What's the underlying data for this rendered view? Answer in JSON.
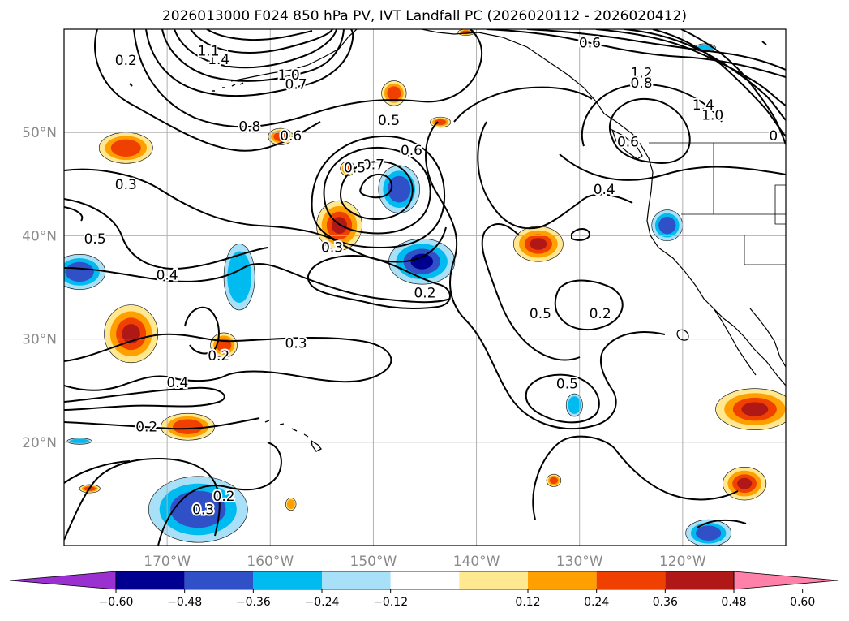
{
  "title": "2026013000 F024 850 hPa PV, IVT Landfall PC (2026020112 - 2026020412)",
  "map": {
    "projection": "PlateCarree",
    "lon_range": [
      -180,
      -110
    ],
    "lat_range": [
      10,
      60
    ],
    "gridlines": true,
    "lon_ticks": [
      {
        "value": -170,
        "label": "170°W"
      },
      {
        "value": -160,
        "label": "160°W"
      },
      {
        "value": -150,
        "label": "150°W"
      },
      {
        "value": -140,
        "label": "140°W"
      },
      {
        "value": -130,
        "label": "130°W"
      },
      {
        "value": -120,
        "label": "120°W"
      }
    ],
    "lat_ticks": [
      {
        "value": 20,
        "label": "20°N"
      },
      {
        "value": 30,
        "label": "30°N"
      },
      {
        "value": 40,
        "label": "40°N"
      },
      {
        "value": 50,
        "label": "50°N"
      }
    ],
    "contour_labels": [
      {
        "lon": -174,
        "lat": 57,
        "text": "0.2"
      },
      {
        "lon": -174,
        "lat": 45,
        "text": "0.3"
      },
      {
        "lon": -177,
        "lat": 39.7,
        "text": "0.5"
      },
      {
        "lon": -170,
        "lat": 36.2,
        "text": "0.4"
      },
      {
        "lon": -162,
        "lat": 50.6,
        "text": "0.8"
      },
      {
        "lon": -158,
        "lat": 49.7,
        "text": "0.6"
      },
      {
        "lon": -148.5,
        "lat": 51.2,
        "text": "0.5"
      },
      {
        "lon": -150,
        "lat": 46.9,
        "text": "0.7"
      },
      {
        "lon": -151.8,
        "lat": 46.6,
        "text": "0.5"
      },
      {
        "lon": -146.3,
        "lat": 48.3,
        "text": "0.6"
      },
      {
        "lon": -154,
        "lat": 38.9,
        "text": "0.3"
      },
      {
        "lon": -145,
        "lat": 34.5,
        "text": "0.2"
      },
      {
        "lon": -157.5,
        "lat": 29.6,
        "text": "0.3"
      },
      {
        "lon": -165,
        "lat": 28.4,
        "text": "0.2"
      },
      {
        "lon": -169,
        "lat": 25.8,
        "text": "0.4"
      },
      {
        "lon": -172,
        "lat": 21.5,
        "text": "0.2"
      },
      {
        "lon": -158.2,
        "lat": 55.6,
        "text": "1.0"
      },
      {
        "lon": -157.5,
        "lat": 54.7,
        "text": "0.7"
      },
      {
        "lon": -165,
        "lat": 57.1,
        "text": "1.4"
      },
      {
        "lon": -166,
        "lat": 57.9,
        "text": "1.1"
      },
      {
        "lon": -133.8,
        "lat": 32.5,
        "text": "0.5"
      },
      {
        "lon": -128,
        "lat": 32.5,
        "text": "0.2"
      },
      {
        "lon": -131.2,
        "lat": 25.7,
        "text": "0.5"
      },
      {
        "lon": -166.5,
        "lat": 13.5,
        "text": "0.3"
      },
      {
        "lon": -164.5,
        "lat": 14.8,
        "text": "0.2"
      },
      {
        "lon": -129,
        "lat": 58.7,
        "text": "0.6"
      },
      {
        "lon": -124,
        "lat": 55.8,
        "text": "1.2"
      },
      {
        "lon": -124,
        "lat": 54.8,
        "text": "0.8"
      },
      {
        "lon": -125.3,
        "lat": 49.1,
        "text": "0.6"
      },
      {
        "lon": -127.6,
        "lat": 44.5,
        "text": "0.4"
      },
      {
        "lon": -118,
        "lat": 52.7,
        "text": "1.4"
      },
      {
        "lon": -117.1,
        "lat": 51.7,
        "text": "1.0"
      },
      {
        "lon": -111.2,
        "lat": 49.7,
        "text": "0"
      }
    ]
  },
  "colorbar": {
    "ticks": [
      "−0.60",
      "−0.48",
      "−0.36",
      "−0.24",
      "−0.12",
      "0.12",
      "0.24",
      "0.36",
      "0.48",
      "0.60"
    ],
    "colors": [
      "#9b30d0",
      "#000090",
      "#3050c8",
      "#00bbf0",
      "#a8e0f8",
      "#ffffff",
      "#ffe890",
      "#ffa000",
      "#f04000",
      "#b01818",
      "#ff80a8"
    ]
  },
  "colors": {
    "red": "#f04000",
    "dark_red": "#b01818",
    "orange": "#ffa000",
    "yellow": "#ffe890",
    "navy": "#000090",
    "blue": "#3050c8",
    "cyan": "#00bbf0",
    "light_cyan": "#a8e0f8"
  },
  "shaded_regions": [
    {
      "sign": "pos",
      "level": 2,
      "lon": -174,
      "lat": 48.5,
      "rx": 2.6,
      "ry": 1.5
    },
    {
      "sign": "pos",
      "level": 3,
      "lon": -173.5,
      "lat": 30.5,
      "rx": 2.6,
      "ry": 2.8
    },
    {
      "sign": "pos",
      "level": 2,
      "lon": -164.5,
      "lat": 29.4,
      "rx": 1.3,
      "ry": 1.2
    },
    {
      "sign": "pos",
      "level": 2,
      "lon": -159,
      "lat": 49.6,
      "rx": 1.2,
      "ry": 0.8
    },
    {
      "sign": "pos",
      "level": 2,
      "lon": -148,
      "lat": 53.8,
      "rx": 1.2,
      "ry": 1.2
    },
    {
      "sign": "pos",
      "level": 2,
      "lon": -143.5,
      "lat": 51,
      "rx": 1.0,
      "ry": 0.5
    },
    {
      "sign": "pos",
      "level": 3,
      "lon": -153.3,
      "lat": 41,
      "rx": 2.2,
      "ry": 2.4
    },
    {
      "sign": "pos",
      "level": 2,
      "lon": -152.5,
      "lat": 46.5,
      "rx": 0.7,
      "ry": 0.7
    },
    {
      "sign": "pos",
      "level": 2,
      "lon": -168,
      "lat": 21.5,
      "rx": 2.6,
      "ry": 1.3
    },
    {
      "sign": "pos",
      "level": 3,
      "lon": -134,
      "lat": 39.2,
      "rx": 2.4,
      "ry": 1.7
    },
    {
      "sign": "pos",
      "level": 2,
      "lon": -132.5,
      "lat": 16.3,
      "rx": 0.7,
      "ry": 0.6
    },
    {
      "sign": "pos",
      "level": 3,
      "lon": -113,
      "lat": 23.2,
      "rx": 3.8,
      "ry": 2.0
    },
    {
      "sign": "pos",
      "level": 3,
      "lon": -114,
      "lat": 16,
      "rx": 2.1,
      "ry": 1.6
    },
    {
      "sign": "pos",
      "level": 2,
      "lon": -177.5,
      "lat": 15.5,
      "rx": 1.0,
      "ry": 0.4
    },
    {
      "sign": "pos",
      "level": 1,
      "lon": -158,
      "lat": 14,
      "rx": 0.5,
      "ry": 0.6
    },
    {
      "sign": "pos",
      "level": 2,
      "lon": -141,
      "lat": 59.7,
      "rx": 0.8,
      "ry": 0.3
    },
    {
      "sign": "neg",
      "level": 3,
      "lon": -145.3,
      "lat": 37.5,
      "rx": 3.2,
      "ry": 2.2
    },
    {
      "sign": "neg",
      "level": 2,
      "lon": -147.5,
      "lat": 44.5,
      "rx": 2.0,
      "ry": 2.3
    },
    {
      "sign": "neg",
      "level": 2,
      "lon": -178.5,
      "lat": 36.5,
      "rx": 2.5,
      "ry": 1.7
    },
    {
      "sign": "neg",
      "level": 1,
      "lon": -163,
      "lat": 36,
      "rx": 1.5,
      "ry": 3.2
    },
    {
      "sign": "neg",
      "level": 2,
      "lon": -167,
      "lat": 13.5,
      "rx": 4.8,
      "ry": 3.2
    },
    {
      "sign": "neg",
      "level": 2,
      "lon": -121.5,
      "lat": 41,
      "rx": 1.5,
      "ry": 1.5
    },
    {
      "sign": "neg",
      "level": 1,
      "lon": -130.5,
      "lat": 23.6,
      "rx": 0.8,
      "ry": 1.1
    },
    {
      "sign": "neg",
      "level": 2,
      "lon": -117.5,
      "lat": 11.2,
      "rx": 2.2,
      "ry": 1.3
    },
    {
      "sign": "neg",
      "level": 1,
      "lon": -178.5,
      "lat": 20.1,
      "rx": 1.2,
      "ry": 0.3
    },
    {
      "sign": "neg",
      "level": 1,
      "lon": -117.8,
      "lat": 58.2,
      "rx": 1.0,
      "ry": 0.4
    }
  ]
}
